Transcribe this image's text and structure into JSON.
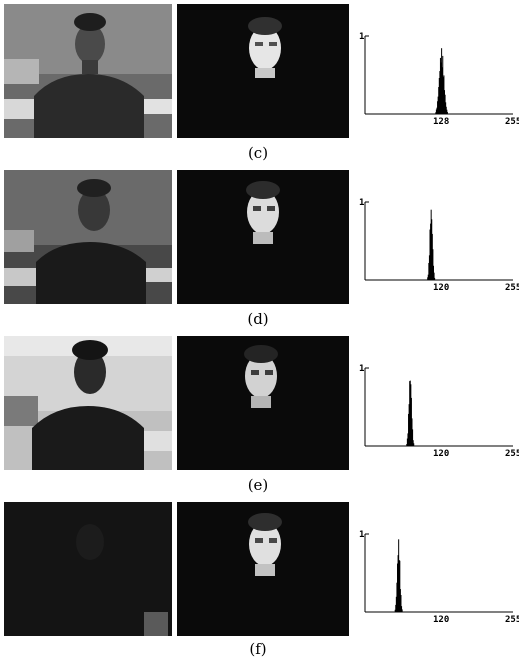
{
  "figure": {
    "rows": [
      {
        "caption": "(c)",
        "original_image": {
          "description": "man in front of window, moderate lighting"
        },
        "segmented_image": {
          "description": "segmented face on black background"
        },
        "histogram": {
          "y_top_label": "1",
          "x_labels": [
            "128",
            "255"
          ],
          "peak_center": 132,
          "peak_spread": 10,
          "peak_height": 0.85
        }
      },
      {
        "caption": "(d)",
        "original_image": {
          "description": "man, darker lighting"
        },
        "segmented_image": {
          "description": "segmented face on black background"
        },
        "histogram": {
          "y_top_label": "1",
          "x_labels": [
            "120",
            "255"
          ],
          "peak_center": 114,
          "peak_spread": 6,
          "peak_height": 0.95
        }
      },
      {
        "caption": "(e)",
        "original_image": {
          "description": "man in backlit scene, bright background"
        },
        "segmented_image": {
          "description": "segmented face on black background"
        },
        "histogram": {
          "y_top_label": "1",
          "x_labels": [
            "120",
            "255"
          ],
          "peak_center": 78,
          "peak_spread": 6,
          "peak_height": 0.95
        }
      },
      {
        "caption": "(f)",
        "original_image": {
          "description": "very dark scene"
        },
        "segmented_image": {
          "description": "segmented face on black background"
        },
        "histogram": {
          "y_top_label": "1",
          "x_labels": [
            "120",
            "255"
          ],
          "peak_center": 58,
          "peak_spread": 6,
          "peak_height": 0.95
        }
      }
    ]
  }
}
